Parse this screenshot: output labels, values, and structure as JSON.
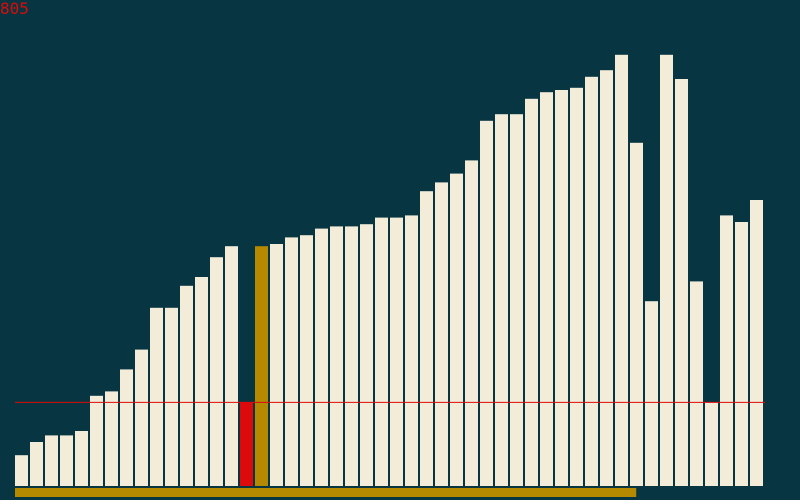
{
  "counter": {
    "value": "805"
  },
  "colors": {
    "background": "#073642",
    "bar": "#f2ecd9",
    "bar_current": "#dc0a0a",
    "bar_compare": "#b58900",
    "threshold_line": "#dc0a0a",
    "progress_bar": "#b58900",
    "counter_text": "#dc0a0a"
  },
  "sort": {
    "current_index": 15,
    "compare_index": 16,
    "progress_fraction": 0.8283
  },
  "chart_data": {
    "type": "bar",
    "grid": false,
    "legend": "none",
    "ylim": [
      0,
      100
    ],
    "threshold": 19,
    "values": [
      7,
      10,
      11.5,
      11.5,
      12.5,
      20.5,
      21.5,
      26.5,
      31,
      40.5,
      40.5,
      45.5,
      47.5,
      52,
      54.5,
      19,
      54.5,
      55,
      56.5,
      57,
      58.5,
      59,
      59,
      59.5,
      61,
      61,
      61.5,
      67,
      69,
      71,
      74,
      83,
      84.5,
      84.5,
      88,
      89.5,
      90,
      90.5,
      93,
      94.5,
      98,
      78,
      42,
      98,
      92.5,
      46.5,
      19,
      61.5,
      60,
      65
    ]
  }
}
